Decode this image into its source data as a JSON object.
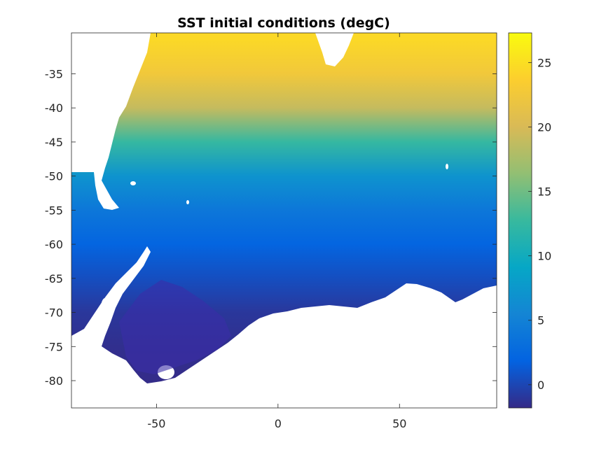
{
  "chart_data": {
    "type": "heatmap",
    "title": "SST initial conditions (degC)",
    "xlabel": "",
    "ylabel": "",
    "x_ticks": [
      -50,
      0,
      50
    ],
    "y_ticks": [
      -35,
      -40,
      -45,
      -50,
      -55,
      -60,
      -65,
      -70,
      -75,
      -80
    ],
    "xlim": [
      -85,
      90
    ],
    "ylim": [
      -84,
      -29
    ],
    "colorbar": {
      "ticks": [
        0,
        5,
        10,
        15,
        20,
        25
      ],
      "clim": [
        -1.8,
        27.3
      ],
      "colormap": "parula"
    },
    "background_color": "#ffffff",
    "zonal_mean_sst": [
      {
        "lat": -30,
        "value": 24.5
      },
      {
        "lat": -35,
        "value": 22.5
      },
      {
        "lat": -40,
        "value": 19.0
      },
      {
        "lat": -45,
        "value": 12.5
      },
      {
        "lat": -50,
        "value": 7.0
      },
      {
        "lat": -55,
        "value": 4.0
      },
      {
        "lat": -60,
        "value": 2.0
      },
      {
        "lat": -65,
        "value": 0.5
      },
      {
        "lat": -70,
        "value": -1.0
      },
      {
        "lat": -75,
        "value": -1.5
      },
      {
        "lat": -80,
        "value": -1.7
      }
    ]
  }
}
